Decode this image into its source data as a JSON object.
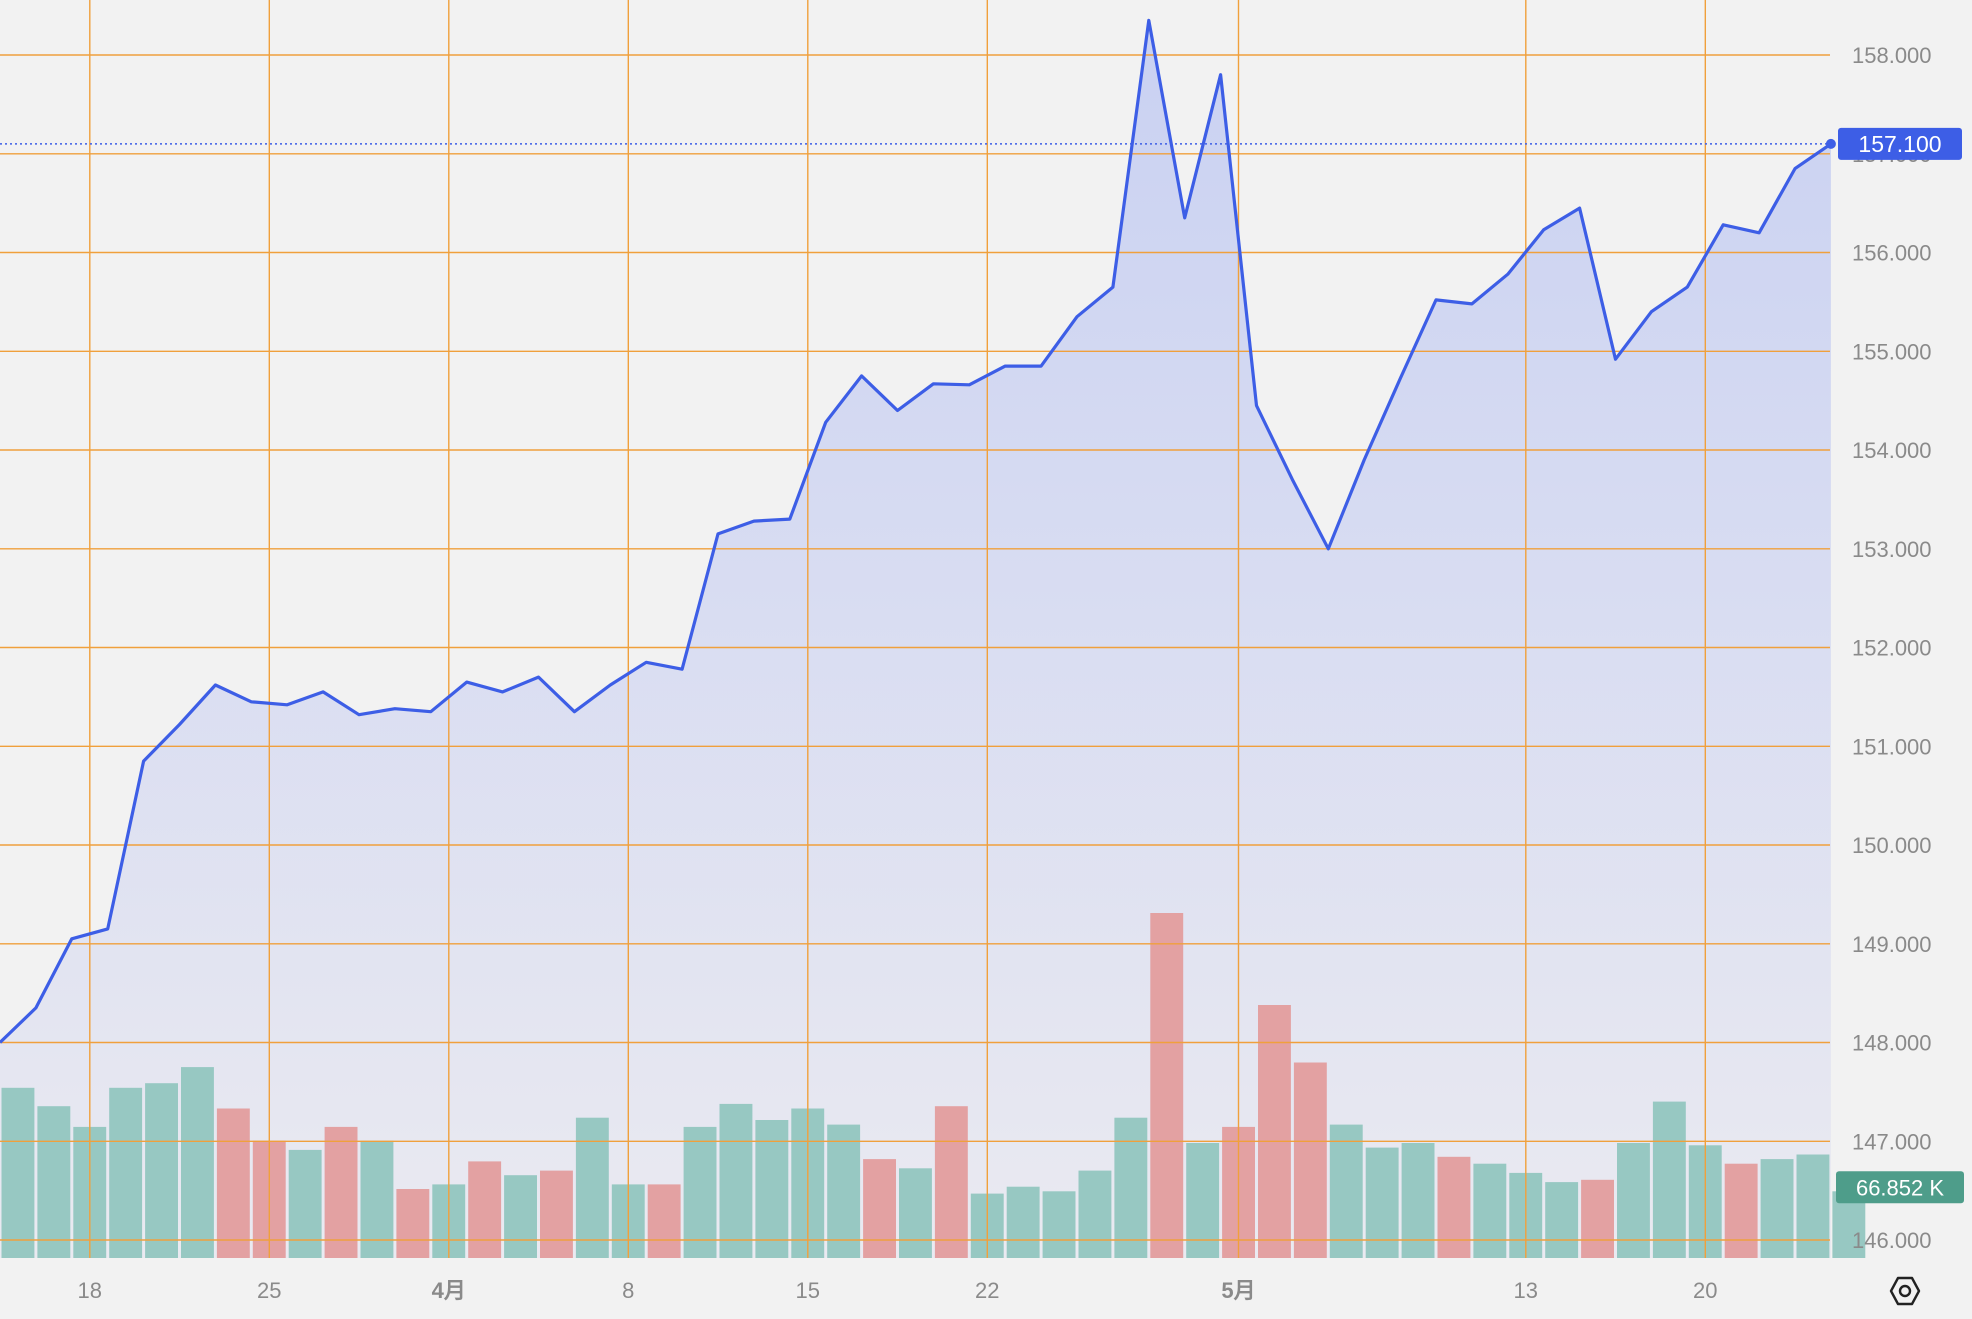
{
  "theme": {
    "background": "#f2f2f2",
    "grid_color": "#f0a03c",
    "line_color": "#3d5ee6",
    "area_top": "#c9d1f2",
    "area_bottom": "#eaeaf1",
    "volume_up_color": "#97c8c2",
    "volume_down_color": "#e3a1a2",
    "axis_text_color": "#8a8a8a",
    "last_price_label_bg": "#3d5ee6",
    "volume_label_bg": "#4e9d8a"
  },
  "chart_data": {
    "type": "line",
    "title": "",
    "xlabel": "",
    "ylabel": "",
    "ylim": [
      146.0,
      158.3
    ],
    "price_ticks": [
      "158.000",
      "157.000",
      "156.000",
      "155.000",
      "154.000",
      "153.000",
      "152.000",
      "151.000",
      "150.000",
      "149.000",
      "148.000",
      "147.000",
      "146.000"
    ],
    "x_tick_labels": [
      {
        "label": "18",
        "index": 2.5
      },
      {
        "label": "25",
        "index": 7.5
      },
      {
        "label": "4月",
        "index": 12.5,
        "bold": true
      },
      {
        "label": "8",
        "index": 17.5
      },
      {
        "label": "15",
        "index": 22.5
      },
      {
        "label": "22",
        "index": 27.5
      },
      {
        "label": "5月",
        "index": 34.5,
        "bold": true
      },
      {
        "label": "13",
        "index": 42.5
      },
      {
        "label": "20",
        "index": 47.5
      }
    ],
    "series": [
      {
        "type": "line",
        "values": [
          148.0,
          148.35,
          149.05,
          149.15,
          150.85,
          151.22,
          151.62,
          151.45,
          151.42,
          151.55,
          151.32,
          151.38,
          151.35,
          151.65,
          151.55,
          151.7,
          151.35,
          151.62,
          151.85,
          151.78,
          153.15,
          153.28,
          153.3,
          154.28,
          154.75,
          154.4,
          154.67,
          154.66,
          154.85,
          154.85,
          155.35,
          155.65,
          158.35,
          156.35,
          157.8,
          154.45,
          153.7,
          153.0,
          153.9,
          154.72,
          155.52,
          155.48,
          155.78,
          156.23,
          156.45,
          154.92,
          155.4,
          155.65,
          156.28,
          156.2,
          156.85,
          157.1
        ],
        "last_value_label": "157.100"
      },
      {
        "type": "bar",
        "volume_values": [
          74,
          66,
          57,
          74,
          76,
          83,
          65,
          51,
          47,
          57,
          51,
          30,
          32,
          42,
          36,
          38,
          61,
          32,
          32,
          57,
          67,
          60,
          65,
          58,
          43,
          39,
          66,
          28,
          31,
          29,
          38,
          61,
          150,
          50,
          57,
          110,
          85,
          58,
          48,
          50,
          44,
          41,
          37,
          33,
          34,
          50,
          68,
          49,
          41,
          43,
          45,
          29
        ],
        "volume_direction": [
          "up",
          "up",
          "up",
          "up",
          "up",
          "up",
          "down",
          "down",
          "up",
          "down",
          "up",
          "down",
          "up",
          "down",
          "up",
          "down",
          "up",
          "up",
          "down",
          "up",
          "up",
          "up",
          "up",
          "up",
          "down",
          "up",
          "down",
          "up",
          "up",
          "up",
          "up",
          "up",
          "down",
          "up",
          "down",
          "down",
          "down",
          "up",
          "up",
          "up",
          "down",
          "up",
          "up",
          "up",
          "down",
          "up",
          "up",
          "up",
          "down",
          "up",
          "up",
          "up"
        ],
        "last_value_label": "66.852 K"
      }
    ],
    "grid": true,
    "legend": "none"
  },
  "icons": {
    "settings": "settings-icon"
  }
}
